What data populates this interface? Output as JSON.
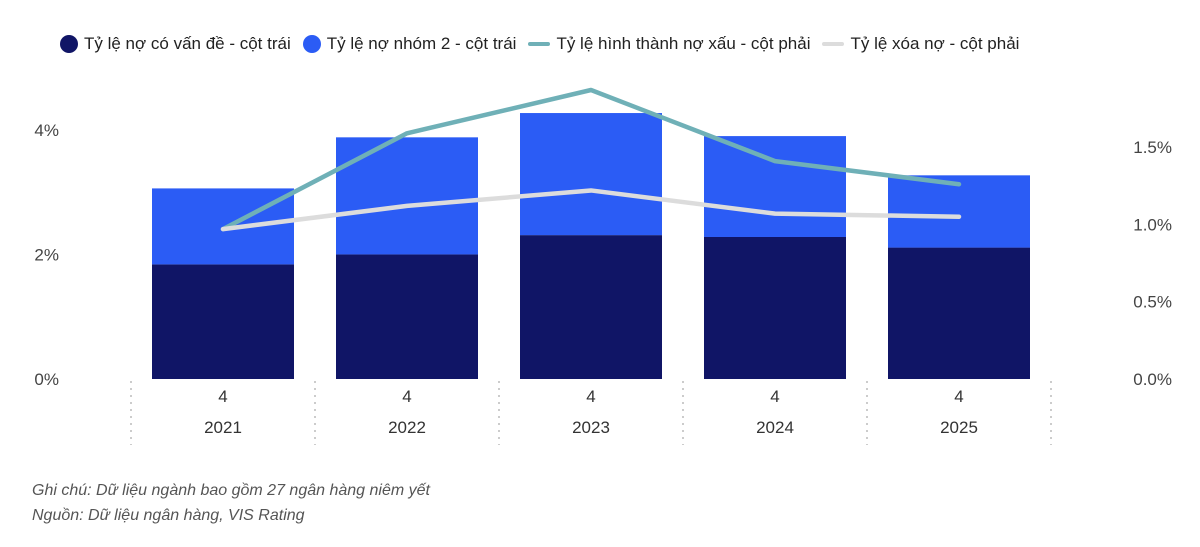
{
  "chart_data": {
    "type": "bar",
    "x": [
      {
        "quarter": "4",
        "year": "2021"
      },
      {
        "quarter": "4",
        "year": "2022"
      },
      {
        "quarter": "4",
        "year": "2023"
      },
      {
        "quarter": "4",
        "year": "2024"
      },
      {
        "quarter": "4",
        "year": "2025"
      }
    ],
    "bar_series": [
      {
        "name": "Tỷ lệ nợ có vấn đề - cột trái",
        "color": "#101566",
        "values": [
          1.84,
          2.0,
          2.31,
          2.28,
          2.11
        ]
      },
      {
        "name": "Tỷ lệ nợ nhóm 2 - cột trái",
        "color": "#2b5cf5",
        "values": [
          1.22,
          1.88,
          1.96,
          1.62,
          1.16
        ]
      }
    ],
    "stacked": true,
    "line_series": [
      {
        "name": "Tỷ lệ hình thành nợ xấu - cột phải",
        "color": "#6fb0b7",
        "values": [
          0.97,
          1.59,
          1.87,
          1.41,
          1.26
        ]
      },
      {
        "name": "Tỷ lệ xóa nợ - cột phải",
        "color": "#dcdcdc",
        "values": [
          0.97,
          1.12,
          1.22,
          1.07,
          1.05
        ]
      }
    ],
    "left_axis": {
      "ylim": [
        0,
        4.64
      ],
      "ticks": [
        0,
        2,
        4
      ],
      "tick_labels": [
        "0%",
        "2%",
        "4%"
      ]
    },
    "right_axis": {
      "ylim": [
        0,
        1.87
      ],
      "ticks": [
        0.0,
        0.5,
        1.0,
        1.5
      ],
      "tick_labels": [
        "0.0%",
        "0.5%",
        "1.0%",
        "1.5%"
      ]
    },
    "legend_position": "top",
    "grid": false
  },
  "notes": {
    "line1": "Ghi chú: Dữ liệu ngành bao gồm 27 ngân hàng niêm yết",
    "line2": "Nguồn: Dữ liệu ngân hàng, VIS Rating"
  }
}
